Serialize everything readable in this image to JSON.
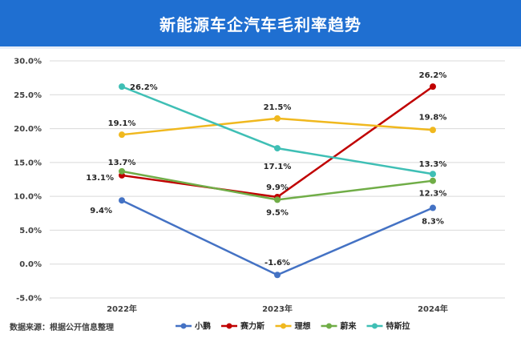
{
  "title": "新能源车企汽车毛利率趋势",
  "source": "数据来源：根据公开信息整理",
  "chart_data": {
    "type": "line",
    "title": "新能源车企汽车毛利率趋势",
    "xlabel": "",
    "ylabel": "",
    "categories": [
      "2022年",
      "2023年",
      "2024年"
    ],
    "ylim": [
      -5.0,
      30.0
    ],
    "yticks": [
      "-5.0%",
      "0.0%",
      "5.0%",
      "10.0%",
      "15.0%",
      "20.0%",
      "25.0%",
      "30.0%"
    ],
    "grid": true,
    "legend_position": "bottom",
    "series": [
      {
        "name": "小鹏",
        "color": "#4472c4",
        "values": [
          9.4,
          -1.6,
          8.3
        ],
        "labels": [
          "9.4%",
          "-1.6%",
          "8.3%"
        ]
      },
      {
        "name": "赛力斯",
        "color": "#c00000",
        "values": [
          13.1,
          9.9,
          26.2
        ],
        "labels": [
          "13.1%",
          "9.9%",
          "26.2%"
        ]
      },
      {
        "name": "理想",
        "color": "#f0b81e",
        "values": [
          19.1,
          21.5,
          19.8
        ],
        "labels": [
          "19.1%",
          "21.5%",
          "19.8%"
        ]
      },
      {
        "name": "蔚来",
        "color": "#70ad47",
        "values": [
          13.7,
          9.5,
          12.3
        ],
        "labels": [
          "13.7%",
          "9.5%",
          "12.3%"
        ]
      },
      {
        "name": "特斯拉",
        "color": "#3fbfb5",
        "values": [
          26.2,
          17.1,
          13.3
        ],
        "labels": [
          "26.2%",
          "17.1%",
          "13.3%"
        ]
      }
    ]
  }
}
